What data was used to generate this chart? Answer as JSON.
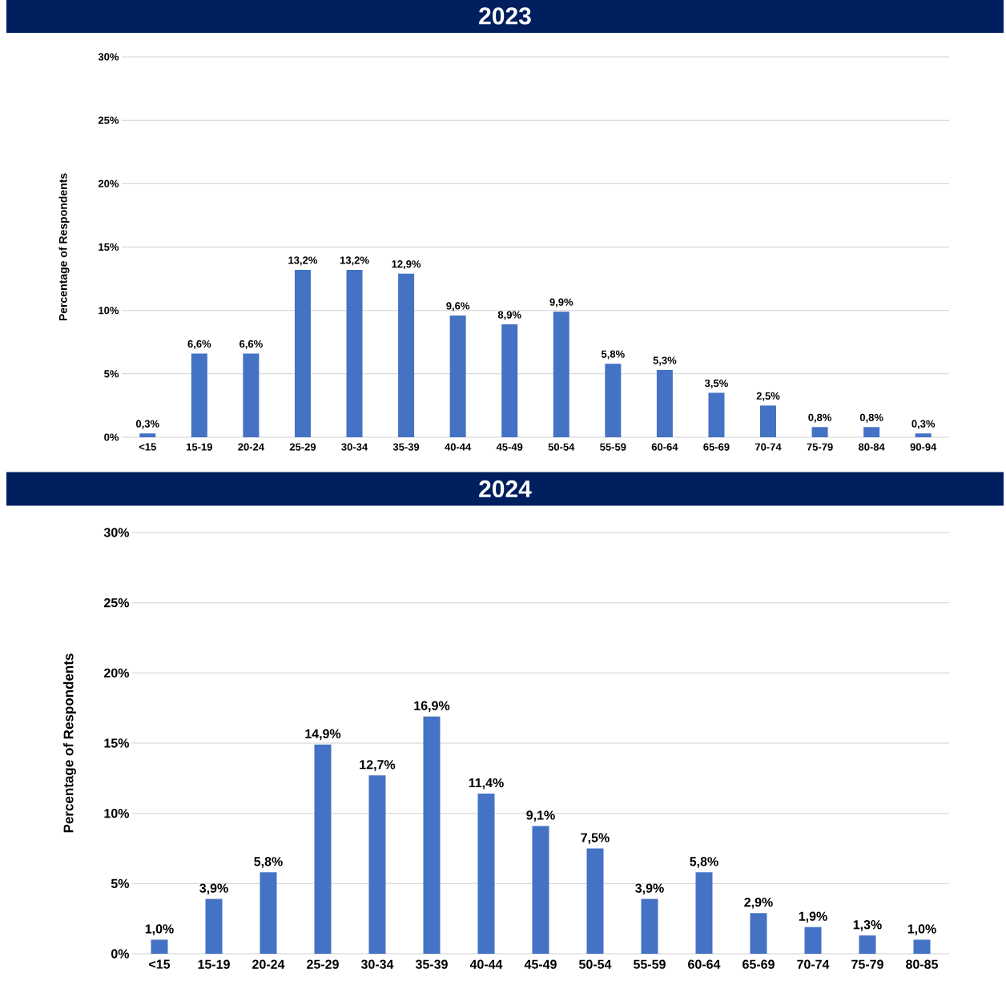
{
  "chart_data": [
    {
      "type": "bar",
      "title": "2023",
      "ylabel": "Percentage of Respondents",
      "color": "#4472c4",
      "categories": [
        "<15",
        "15-19",
        "20-24",
        "25-29",
        "30-34",
        "35-39",
        "40-44",
        "45-49",
        "50-54",
        "55-59",
        "60-64",
        "65-69",
        "70-74",
        "75-79",
        "80-84",
        "90-94"
      ],
      "values": [
        0.3,
        6.6,
        6.6,
        13.2,
        13.2,
        12.9,
        9.6,
        8.9,
        9.9,
        5.8,
        5.3,
        3.5,
        2.5,
        0.8,
        0.8,
        0.3
      ],
      "value_labels": [
        "0,3%",
        "6,6%",
        "6,6%",
        "13,2%",
        "13,2%",
        "12,9%",
        "9,6%",
        "8,9%",
        "9,9%",
        "5,8%",
        "5,3%",
        "3,5%",
        "2,5%",
        "0,8%",
        "0,8%",
        "0,3%"
      ],
      "ylim": [
        0,
        30
      ],
      "yticks": [
        {
          "value": 0,
          "label": "0%"
        },
        {
          "value": 5,
          "label": "5%"
        },
        {
          "value": 10,
          "label": "10%"
        },
        {
          "value": 15,
          "label": "15%"
        },
        {
          "value": 20,
          "label": "20%"
        },
        {
          "value": 25,
          "label": "25%"
        },
        {
          "value": 30,
          "label": "30%"
        }
      ],
      "grid": "y"
    },
    {
      "type": "bar",
      "title": "2024",
      "ylabel": "Percentage of Respondents",
      "color": "#4472c4",
      "categories": [
        "<15",
        "15-19",
        "20-24",
        "25-29",
        "30-34",
        "35-39",
        "40-44",
        "45-49",
        "50-54",
        "55-59",
        "60-64",
        "65-69",
        "70-74",
        "75-79",
        "80-85"
      ],
      "values": [
        1.0,
        3.9,
        5.8,
        14.9,
        12.7,
        16.9,
        11.4,
        9.1,
        7.5,
        3.9,
        5.8,
        2.9,
        1.9,
        1.3,
        1.0
      ],
      "value_labels": [
        "1,0%",
        "3,9%",
        "5,8%",
        "14,9%",
        "12,7%",
        "16,9%",
        "11,4%",
        "9,1%",
        "7,5%",
        "3,9%",
        "5,8%",
        "2,9%",
        "1,9%",
        "1,3%",
        "1,0%"
      ],
      "ylim": [
        0,
        30
      ],
      "yticks": [
        {
          "value": 0,
          "label": "0%"
        },
        {
          "value": 5,
          "label": "5%"
        },
        {
          "value": 10,
          "label": "10%"
        },
        {
          "value": 15,
          "label": "15%"
        },
        {
          "value": 20,
          "label": "20%"
        },
        {
          "value": 25,
          "label": "25%"
        },
        {
          "value": 30,
          "label": "30%"
        }
      ],
      "grid": "y"
    }
  ]
}
